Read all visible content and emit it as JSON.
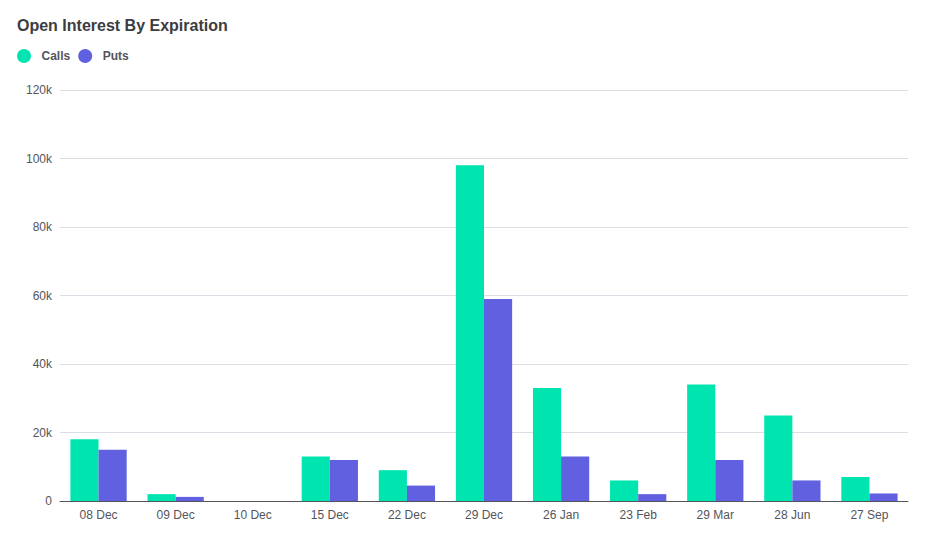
{
  "chart_data": {
    "type": "bar",
    "title": "Open Interest By Expiration",
    "categories": [
      "08 Dec",
      "09 Dec",
      "10 Dec",
      "15 Dec",
      "22 Dec",
      "29 Dec",
      "26 Jan",
      "23 Feb",
      "29 Mar",
      "28 Jun",
      "27 Sep"
    ],
    "series": [
      {
        "name": "Calls",
        "color": "#00e5b0",
        "values": [
          18000,
          2000,
          0,
          13000,
          9000,
          98000,
          33000,
          6000,
          34000,
          25000,
          7000
        ]
      },
      {
        "name": "Puts",
        "color": "#6060e0",
        "values": [
          15000,
          1200,
          0,
          12000,
          4500,
          59000,
          13000,
          2000,
          12000,
          6000,
          2200
        ]
      }
    ],
    "ylim": [
      0,
      120000
    ],
    "yticks": [
      0,
      {
        "value": 20000,
        "label": "20k"
      },
      {
        "value": 40000,
        "label": "40k"
      },
      {
        "value": 60000,
        "label": "60k"
      },
      {
        "value": 80000,
        "label": "80k"
      },
      {
        "value": 100000,
        "label": "100k"
      },
      {
        "value": 120000,
        "label": "120k"
      }
    ],
    "grid": true,
    "legend": "upper left"
  }
}
